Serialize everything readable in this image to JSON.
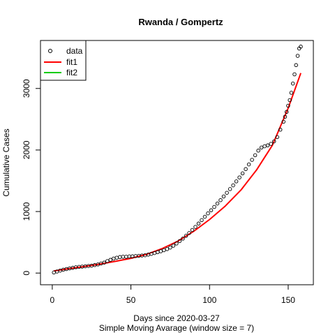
{
  "chart_data": {
    "type": "scatter",
    "title": "Rwanda / Gompertz",
    "xlabel": "Days since 2020-03-27",
    "xsublabel": "Simple Moving Avarage (window size = 7)",
    "ylabel": "Cumulative Cases",
    "xlim": [
      -7.5,
      166
    ],
    "ylim": [
      -190,
      3780
    ],
    "xticks": [
      0,
      50,
      100,
      150
    ],
    "yticks": [
      0,
      1000,
      2000,
      3000
    ],
    "grid": false,
    "legend": {
      "position": "top-left",
      "entries": [
        "data",
        "fit1",
        "fit2"
      ]
    },
    "colors": {
      "data": "#000000",
      "fit1": "#ff0000",
      "fit2": "#00cc00"
    },
    "series": [
      {
        "name": "data",
        "style": "points",
        "x": [
          1,
          3,
          5,
          7,
          9,
          11,
          13,
          15,
          17,
          19,
          21,
          23,
          25,
          27,
          29,
          31,
          33,
          35,
          37,
          39,
          41,
          43,
          45,
          47,
          49,
          51,
          53,
          55,
          57,
          59,
          61,
          63,
          65,
          67,
          69,
          71,
          73,
          75,
          77,
          79,
          81,
          83,
          85,
          87,
          89,
          91,
          93,
          95,
          97,
          99,
          101,
          103,
          105,
          107,
          109,
          111,
          113,
          115,
          117,
          119,
          121,
          123,
          125,
          127,
          129,
          131,
          133,
          135,
          137,
          139,
          141,
          143,
          145,
          147,
          148,
          149,
          150,
          151,
          152,
          153,
          154,
          155,
          156,
          157,
          158
        ],
        "y": [
          10,
          25,
          40,
          55,
          65,
          75,
          85,
          95,
          100,
          105,
          110,
          115,
          120,
          130,
          140,
          155,
          170,
          195,
          215,
          235,
          250,
          260,
          265,
          265,
          270,
          272,
          276,
          280,
          285,
          290,
          300,
          312,
          325,
          340,
          355,
          372,
          390,
          415,
          445,
          480,
          520,
          560,
          605,
          650,
          700,
          750,
          805,
          860,
          915,
          970,
          1020,
          1075,
          1130,
          1185,
          1245,
          1305,
          1365,
          1425,
          1490,
          1555,
          1620,
          1690,
          1765,
          1840,
          1915,
          1990,
          2040,
          2060,
          2075,
          2100,
          2140,
          2210,
          2330,
          2460,
          2540,
          2620,
          2720,
          2810,
          2930,
          3080,
          3230,
          3380,
          3530,
          3650,
          3680
        ]
      },
      {
        "name": "fit1",
        "style": "line",
        "x": [
          1,
          10,
          20,
          30,
          40,
          50,
          60,
          70,
          80,
          90,
          100,
          110,
          120,
          130,
          140,
          150,
          158
        ],
        "y": [
          35,
          70,
          105,
          145,
          190,
          240,
          305,
          400,
          520,
          680,
          870,
          1090,
          1350,
          1680,
          2080,
          2680,
          3250
        ]
      },
      {
        "name": "fit2",
        "style": "line",
        "x": [],
        "y": []
      }
    ]
  }
}
